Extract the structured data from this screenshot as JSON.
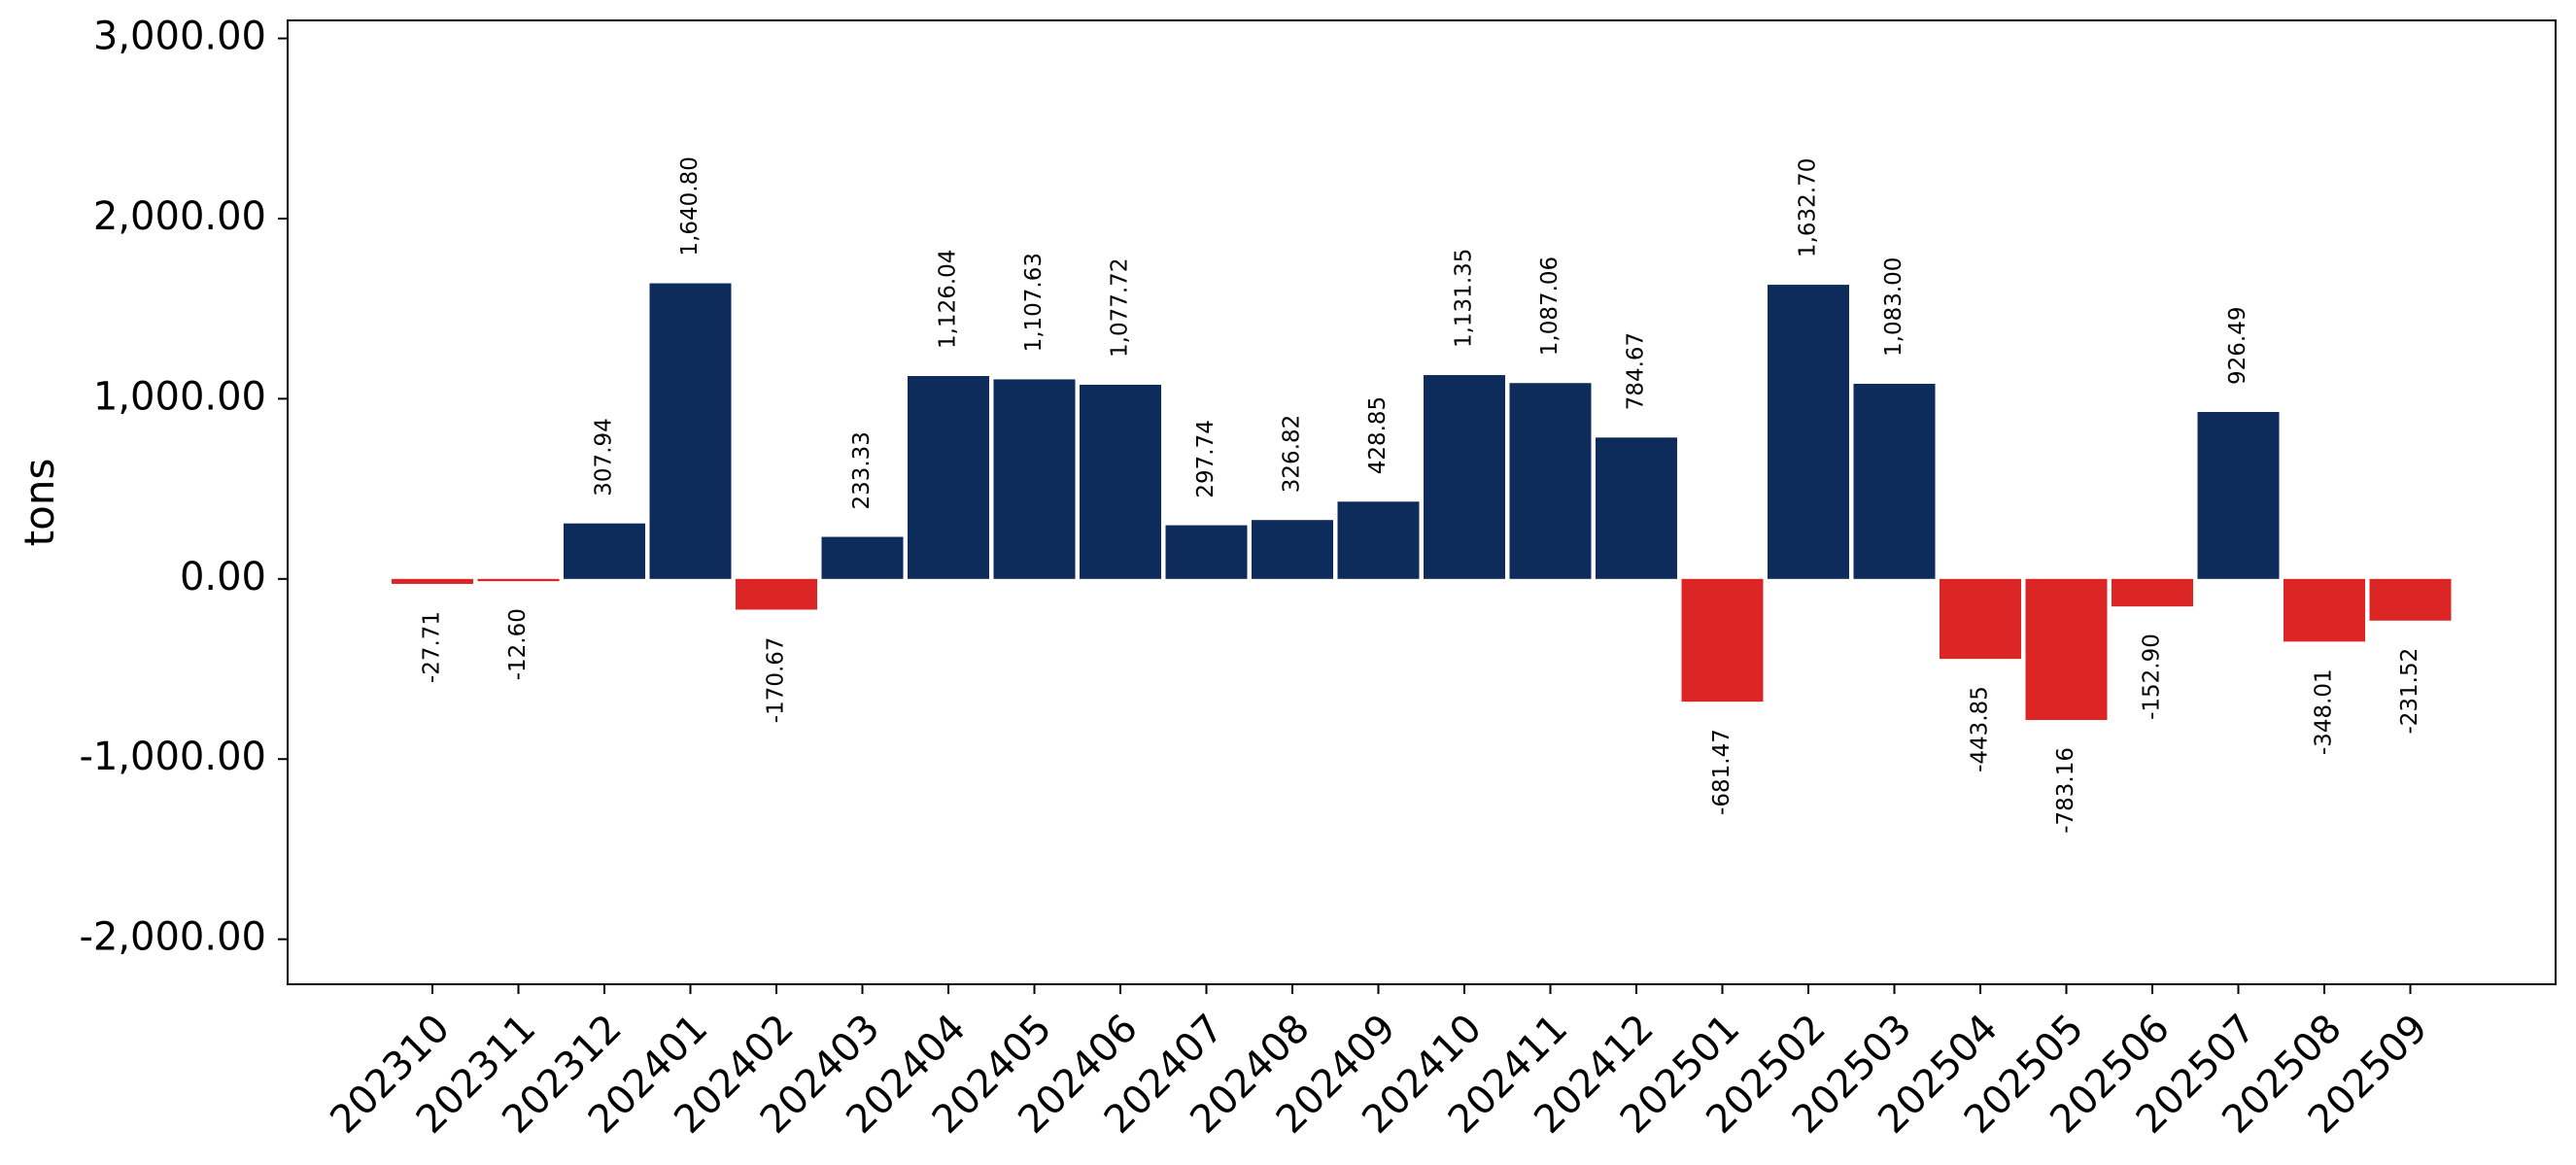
{
  "chart_data": {
    "type": "bar",
    "title": "",
    "xlabel": "",
    "ylabel": "tons",
    "ylim": [
      -2250,
      3100
    ],
    "yticks": [
      -2000,
      -1000,
      0,
      1000,
      2000,
      3000
    ],
    "ytick_labels": [
      "-2,000.00",
      "-1,000.00",
      "0.00",
      "1,000.00",
      "2,000.00",
      "3,000.00"
    ],
    "grid": false,
    "legend": "none",
    "colors": {
      "positive": "#0d2b5b",
      "negative": "#dc2626"
    },
    "categories": [
      "202310",
      "202311",
      "202312",
      "202401",
      "202402",
      "202403",
      "202404",
      "202405",
      "202406",
      "202407",
      "202408",
      "202409",
      "202410",
      "202411",
      "202412",
      "202501",
      "202502",
      "202503",
      "202504",
      "202505",
      "202506",
      "202507",
      "202508",
      "202509"
    ],
    "values": [
      -27.71,
      -12.6,
      307.94,
      1640.8,
      -170.67,
      233.33,
      1126.04,
      1107.63,
      1077.72,
      297.74,
      326.82,
      428.85,
      1131.35,
      1087.06,
      784.67,
      -681.47,
      1632.7,
      1083.0,
      -443.85,
      -783.16,
      -152.9,
      926.49,
      -348.01,
      -231.52
    ],
    "value_labels": [
      "-27.71",
      "-12.60",
      "307.94",
      "1,640.80",
      "-170.67",
      "233.33",
      "1,126.04",
      "1,107.63",
      "1,077.72",
      "297.74",
      "326.82",
      "428.85",
      "1,131.35",
      "1,087.06",
      "784.67",
      "-681.47",
      "1,632.70",
      "1,083.00",
      "-443.85",
      "-783.16",
      "-152.90",
      "926.49",
      "-348.01",
      "-231.52"
    ]
  }
}
